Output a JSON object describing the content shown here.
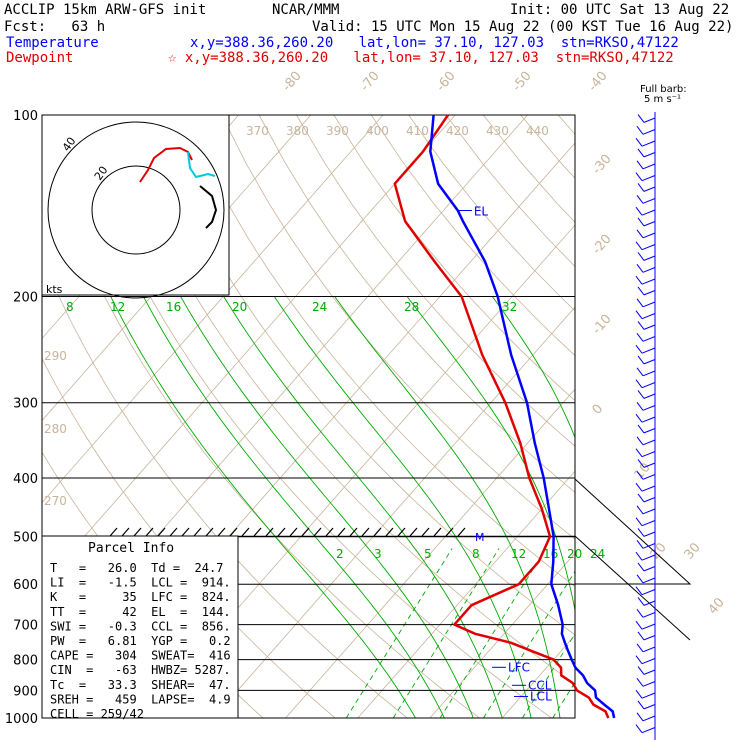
{
  "header": {
    "line1_left": "ACCLIP 15km ARW-GFS init",
    "line1_mid": "NCAR/MMM",
    "line1_right": "Init: 00 UTC Sat 13 Aug 22",
    "line2_left": "Fcst:   63 h",
    "line2_right": "Valid: 15 UTC Mon 15 Aug 22 (00 KST Tue 16 Aug 22)",
    "temp_label": "Temperature",
    "temp_info": "x,y=388.36,260.20   lat,lon= 37.10, 127.03  stn=RKSO,47122",
    "dew_label": "Dewpoint",
    "dew_info": "☆ x,y=388.36,260.20   lat,lon= 37.10, 127.03  stn=RKSO,47122",
    "barb_key_1": "Full barb:",
    "barb_key_2": "5 m s⁻¹"
  },
  "colors": {
    "temperature": "#0000ff",
    "dewpoint": "#e00000",
    "mixing_ratio": "#00aa00",
    "isotherm": "#c8b49a",
    "hodo_cyan": "#00c8e0"
  },
  "pressure_labels": [
    "100",
    "200",
    "300",
    "400",
    "500",
    "600",
    "700",
    "800",
    "900",
    "1000"
  ],
  "isotherm_labels": [
    "-80",
    "-70",
    "-60",
    "-50",
    "-40",
    "-30",
    "-20",
    "-10",
    "0",
    "10",
    "20",
    "30",
    "40"
  ],
  "theta_labels": [
    "370",
    "380",
    "390",
    "400",
    "410",
    "420",
    "430",
    "440"
  ],
  "theta_left_labels": [
    "290",
    "280",
    "270"
  ],
  "mix_ratio_upper": [
    "8",
    "12",
    "16",
    "20",
    "24",
    "28",
    "32"
  ],
  "mix_ratio_lower": [
    "2",
    "3",
    "5",
    "8",
    "12",
    "16",
    "20",
    "24"
  ],
  "hodograph": {
    "ring_labels": [
      "20",
      "40"
    ],
    "units": "kts"
  },
  "levels": {
    "el": "EL",
    "lfc": "LFC",
    "ccl": "CCL",
    "lcl": "LCL",
    "m": "M"
  },
  "parcel_info": {
    "title": "Parcel Info",
    "rows": [
      "T   =   26.0  Td =  24.7",
      "LI  =   -1.5  LCL =  914.",
      "K   =     35  LFC =  824.",
      "TT  =     42  EL  =  144.",
      "SWI =   -0.3  CCL =  856.",
      "PW  =   6.81  YGP =   0.2",
      "CAPE =   304  SWEAT=  416",
      "CIN  =   -63  HWBZ= 5287.",
      "Tc  =   33.3  SHEAR=  47.",
      "SREH =   459  LAPSE=  4.9",
      "CELL = 259/42"
    ]
  },
  "chart_data": {
    "type": "line",
    "subtype": "skew-T log-p sounding",
    "y_axis": "pressure (hPa), log scale",
    "ylim": [
      1000,
      100
    ],
    "series": [
      {
        "name": "Temperature",
        "points": [
          [
            1000,
            25.5
          ],
          [
            975,
            24.5
          ],
          [
            950,
            22.5
          ],
          [
            925,
            20.5
          ],
          [
            900,
            19.5
          ],
          [
            875,
            17.5
          ],
          [
            850,
            16
          ],
          [
            825,
            14
          ],
          [
            800,
            12.5
          ],
          [
            775,
            11
          ],
          [
            750,
            9.5
          ],
          [
            725,
            8
          ],
          [
            700,
            7
          ],
          [
            650,
            4
          ],
          [
            600,
            0.5
          ],
          [
            550,
            -2
          ],
          [
            500,
            -5
          ],
          [
            450,
            -9
          ],
          [
            400,
            -13.5
          ],
          [
            350,
            -19
          ],
          [
            300,
            -25
          ],
          [
            250,
            -33
          ],
          [
            200,
            -42
          ],
          [
            175,
            -48
          ],
          [
            150,
            -56
          ],
          [
            144,
            -58
          ],
          [
            130,
            -64
          ],
          [
            115,
            -69
          ],
          [
            100,
            -73
          ]
        ]
      },
      {
        "name": "Dewpoint",
        "points": [
          [
            1000,
            24.7
          ],
          [
            975,
            23.5
          ],
          [
            950,
            21
          ],
          [
            925,
            19.5
          ],
          [
            900,
            17
          ],
          [
            875,
            15.5
          ],
          [
            850,
            13
          ],
          [
            825,
            12
          ],
          [
            800,
            10
          ],
          [
            775,
            6
          ],
          [
            750,
            2
          ],
          [
            725,
            -4
          ],
          [
            700,
            -8
          ],
          [
            650,
            -8
          ],
          [
            600,
            -4
          ],
          [
            550,
            -4
          ],
          [
            500,
            -5.5
          ],
          [
            450,
            -10
          ],
          [
            400,
            -15.5
          ],
          [
            350,
            -21
          ],
          [
            300,
            -28
          ],
          [
            250,
            -37
          ],
          [
            200,
            -47
          ],
          [
            175,
            -55
          ],
          [
            150,
            -64
          ],
          [
            130,
            -70
          ],
          [
            115,
            -70
          ],
          [
            100,
            -71
          ]
        ]
      }
    ]
  }
}
